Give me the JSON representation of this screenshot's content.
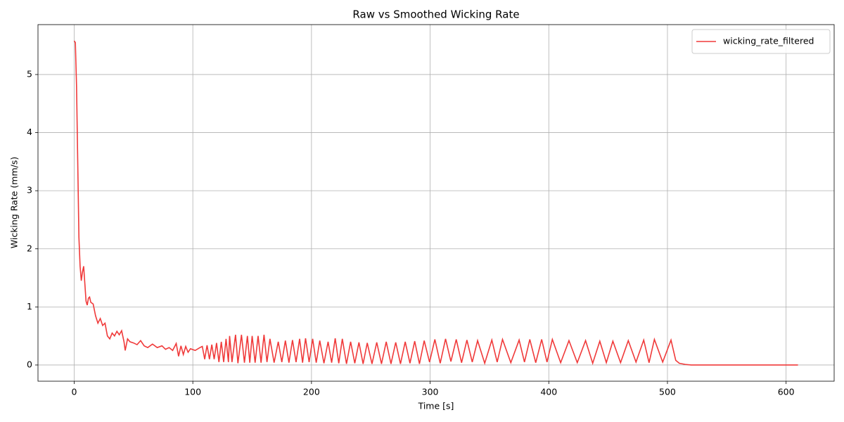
{
  "chart_data": {
    "type": "line",
    "title": "Raw vs Smoothed Wicking Rate",
    "x_label": "Time [s]",
    "y_label": "Wicking Rate (mm/s)",
    "xlim": [
      -30.5,
      640.5
    ],
    "ylim": [
      -0.279,
      5.859
    ],
    "xticks": [
      0,
      100,
      200,
      300,
      400,
      500,
      600
    ],
    "yticks": [
      0,
      1,
      2,
      3,
      4,
      5
    ],
    "grid": true,
    "legend": "upper right",
    "x": [
      0,
      1,
      2,
      3,
      4,
      5,
      6,
      7,
      8,
      9,
      10,
      11,
      12,
      13,
      14,
      16,
      18,
      20,
      22,
      24,
      26,
      28,
      30,
      32,
      34,
      36,
      38,
      40,
      42,
      43,
      45,
      47,
      50,
      53,
      56,
      59,
      62,
      66,
      70,
      74,
      77,
      80,
      83,
      86,
      88,
      90,
      92,
      94,
      96,
      98,
      102,
      106,
      108,
      110,
      112,
      114,
      116,
      118,
      120,
      122,
      124,
      126,
      128,
      130,
      131,
      133,
      136,
      138,
      141,
      143.5,
      146,
      148,
      150,
      152.5,
      155,
      157.5,
      160,
      162.5,
      165,
      168.5,
      172,
      175,
      178,
      181,
      184,
      187,
      190,
      192.5,
      195,
      198,
      201,
      204,
      207,
      210.5,
      214,
      217,
      220,
      223,
      226,
      229.5,
      233,
      236.5,
      240,
      243.5,
      247,
      251,
      255,
      259,
      263,
      267,
      271,
      275,
      279,
      283,
      287,
      291,
      295,
      299.5,
      304,
      308.5,
      313,
      317.5,
      322,
      326.5,
      331,
      335.5,
      340,
      346,
      352,
      356.5,
      361,
      368,
      375,
      379.5,
      384,
      389,
      394,
      398.5,
      403,
      410,
      417,
      424,
      431,
      437,
      443,
      448.5,
      454,
      460.5,
      467,
      473.5,
      480,
      484.5,
      489,
      496,
      503,
      507,
      510,
      515,
      520,
      610
    ],
    "series": [
      {
        "name": "wicking_rate_filtered",
        "color": "#f03a3a",
        "values": [
          5.58,
          5.55,
          4.8,
          3.5,
          2.2,
          1.7,
          1.45,
          1.6,
          1.7,
          1.4,
          1.1,
          1.03,
          1.15,
          1.17,
          1.08,
          1.05,
          0.85,
          0.72,
          0.8,
          0.68,
          0.72,
          0.5,
          0.45,
          0.55,
          0.5,
          0.58,
          0.52,
          0.59,
          0.4,
          0.25,
          0.45,
          0.4,
          0.38,
          0.35,
          0.42,
          0.33,
          0.3,
          0.36,
          0.3,
          0.33,
          0.27,
          0.3,
          0.25,
          0.37,
          0.15,
          0.33,
          0.18,
          0.32,
          0.22,
          0.28,
          0.25,
          0.3,
          0.32,
          0.1,
          0.34,
          0.1,
          0.35,
          0.1,
          0.38,
          0.05,
          0.4,
          0.05,
          0.45,
          0.05,
          0.5,
          0.05,
          0.52,
          0.03,
          0.52,
          0.04,
          0.5,
          0.04,
          0.5,
          0.04,
          0.5,
          0.04,
          0.52,
          0.05,
          0.45,
          0.04,
          0.4,
          0.05,
          0.42,
          0.04,
          0.43,
          0.05,
          0.45,
          0.04,
          0.46,
          0.05,
          0.45,
          0.04,
          0.42,
          0.03,
          0.4,
          0.04,
          0.46,
          0.03,
          0.45,
          0.02,
          0.4,
          0.03,
          0.39,
          0.02,
          0.38,
          0.02,
          0.39,
          0.02,
          0.4,
          0.02,
          0.39,
          0.02,
          0.4,
          0.03,
          0.41,
          0.02,
          0.42,
          0.05,
          0.44,
          0.03,
          0.45,
          0.06,
          0.44,
          0.04,
          0.43,
          0.05,
          0.42,
          0.03,
          0.43,
          0.05,
          0.44,
          0.04,
          0.43,
          0.05,
          0.44,
          0.04,
          0.44,
          0.05,
          0.44,
          0.04,
          0.42,
          0.04,
          0.42,
          0.03,
          0.41,
          0.04,
          0.41,
          0.04,
          0.42,
          0.05,
          0.43,
          0.04,
          0.44,
          0.05,
          0.43,
          0.08,
          0.03,
          0.01,
          0,
          0
        ]
      }
    ]
  }
}
